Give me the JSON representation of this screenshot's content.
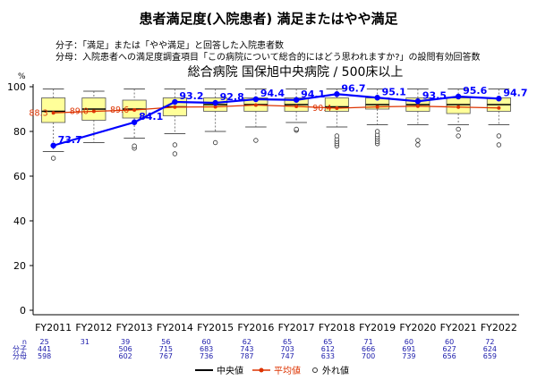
{
  "title": "患者満足度(入院患者) 満足またはやや満足",
  "notes": {
    "numerator": "分子：「満足」または「やや満足」と回答した入院患者数",
    "denominator": "分母：入院患者への満足度調査項目「この病院について総合的にはどう思われますか?」の設問有効回答数"
  },
  "subtitle": "総合病院 国保旭中央病院 / 500床以上",
  "y_unit": "%",
  "table_labels": {
    "n": "n",
    "numerator": "分子",
    "denominator": "分母"
  },
  "legend": {
    "median": "中央値",
    "mean": "平均値",
    "outlier": "外れ値"
  },
  "colors": {
    "median_line": "#0000ff",
    "mean": "#dd3300",
    "box_fill": "#ffff99",
    "median_bar": "#000000"
  },
  "chart_data": {
    "type": "box",
    "title": "総合病院 国保旭中央病院 / 500床以上",
    "ylim": [
      0,
      100
    ],
    "yticks": [
      0,
      20,
      40,
      60,
      80,
      100
    ],
    "categories": [
      "FY2011",
      "FY2012",
      "FY2013",
      "FY2014",
      "FY2015",
      "FY2016",
      "FY2017",
      "FY2018",
      "FY2019",
      "FY2020",
      "FY2021",
      "FY2022"
    ],
    "hospital_values": [
      73.7,
      null,
      84.1,
      93.2,
      92.8,
      94.4,
      94.1,
      96.7,
      95.1,
      93.5,
      95.6,
      94.7
    ],
    "hospital_labels": [
      "73.7",
      "",
      "84.1",
      "93.2",
      "92.8",
      "94.4",
      "94.1",
      "96.7",
      "95.1",
      "93.5",
      "95.6",
      "94.7"
    ],
    "means": [
      88.3,
      89.0,
      89.6,
      90.9,
      91.0,
      91.8,
      91.2,
      90.4,
      91.0,
      91.3,
      90.9,
      90.5
    ],
    "mean_labels": [
      "88.3",
      "89.0",
      "89.6",
      "",
      "",
      "",
      "",
      "90.4",
      "",
      "",
      "",
      ""
    ],
    "boxes": [
      {
        "whisker_low": 71,
        "q1": 84,
        "median": 89,
        "q3": 95,
        "whisker_high": 99
      },
      {
        "whisker_low": 75,
        "q1": 85,
        "median": 90,
        "q3": 95,
        "whisker_high": 98
      },
      {
        "whisker_low": 77,
        "q1": 86,
        "median": 90,
        "q3": 94,
        "whisker_high": 99
      },
      {
        "whisker_low": 79,
        "q1": 87,
        "median": 91,
        "q3": 95,
        "whisker_high": 99
      },
      {
        "whisker_low": 80,
        "q1": 89,
        "median": 92,
        "q3": 95,
        "whisker_high": 99
      },
      {
        "whisker_low": 82,
        "q1": 89,
        "median": 92,
        "q3": 95,
        "whisker_high": 99
      },
      {
        "whisker_low": 84,
        "q1": 89,
        "median": 92,
        "q3": 95,
        "whisker_high": 99
      },
      {
        "whisker_low": 82,
        "q1": 89,
        "median": 91,
        "q3": 95,
        "whisker_high": 99
      },
      {
        "whisker_low": 83,
        "q1": 90,
        "median": 92,
        "q3": 95,
        "whisker_high": 99
      },
      {
        "whisker_low": 83,
        "q1": 89,
        "median": 92,
        "q3": 95,
        "whisker_high": 99
      },
      {
        "whisker_low": 83,
        "q1": 88,
        "median": 92,
        "q3": 95,
        "whisker_high": 99
      },
      {
        "whisker_low": 83,
        "q1": 89,
        "median": 92,
        "q3": 95,
        "whisker_high": 99
      }
    ],
    "outliers": [
      [
        68
      ],
      [],
      [
        72.5,
        73.5
      ],
      [
        74,
        70
      ],
      [
        75
      ],
      [
        76
      ],
      [
        80.5,
        81
      ],
      [
        73.5,
        74.5,
        75.5,
        76.5,
        78
      ],
      [
        74.5,
        75.5,
        76.5,
        77.5,
        78.5,
        80
      ],
      [
        74,
        76
      ],
      [
        78,
        81
      ],
      [
        74,
        78
      ]
    ],
    "table": {
      "n": [
        "25",
        "",
        "39",
        "56",
        "60",
        "62",
        "65",
        "65",
        "71",
        "60",
        "60",
        "72"
      ],
      "n_single": [
        "",
        "31",
        "",
        "",
        "",
        "",
        "",
        "",
        "",
        "",
        "",
        ""
      ],
      "numerator": [
        "441",
        "",
        "506",
        "715",
        "683",
        "743",
        "703",
        "612",
        "666",
        "691",
        "627",
        "624"
      ],
      "denominator": [
        "598",
        "",
        "602",
        "767",
        "736",
        "787",
        "747",
        "633",
        "700",
        "739",
        "656",
        "659"
      ]
    }
  }
}
